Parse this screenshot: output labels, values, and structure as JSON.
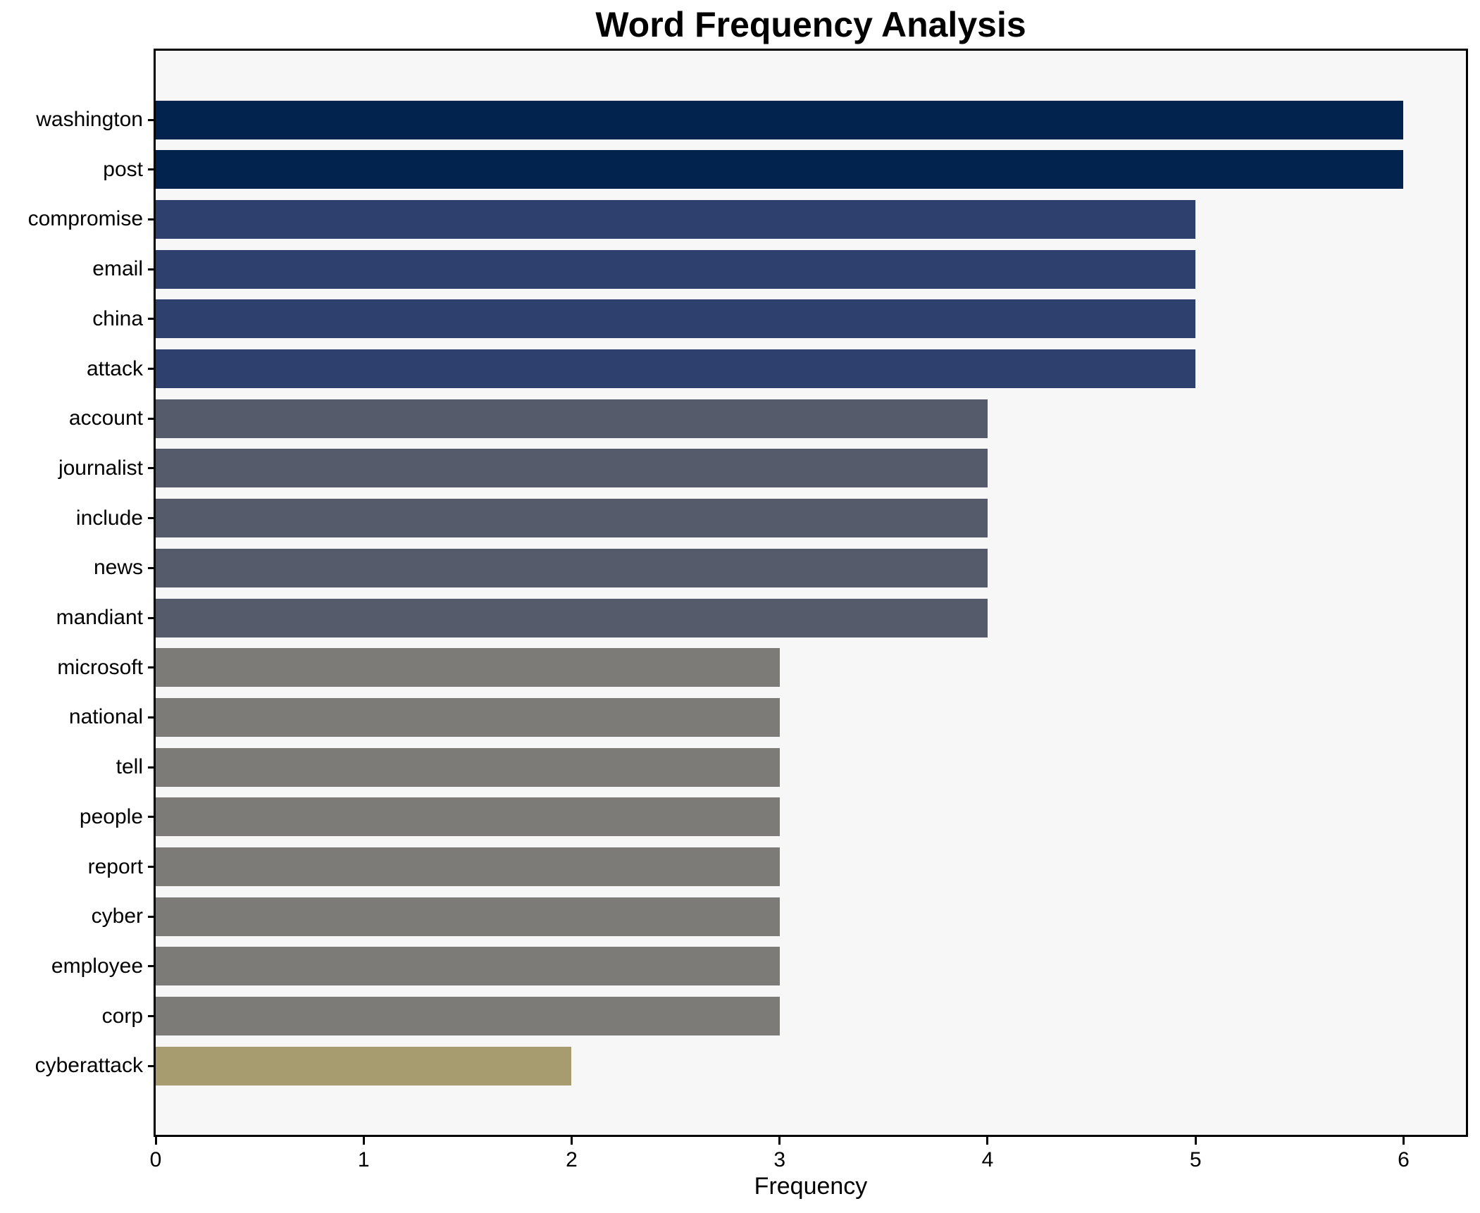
{
  "chart_data": {
    "type": "bar",
    "orientation": "horizontal",
    "title": "Word Frequency Analysis",
    "xlabel": "Frequency",
    "ylabel": "",
    "categories": [
      "washington",
      "post",
      "compromise",
      "email",
      "china",
      "attack",
      "account",
      "journalist",
      "include",
      "news",
      "mandiant",
      "microsoft",
      "national",
      "tell",
      "people",
      "report",
      "cyber",
      "employee",
      "corp",
      "cyberattack"
    ],
    "values": [
      6,
      6,
      5,
      5,
      5,
      5,
      4,
      4,
      4,
      4,
      4,
      3,
      3,
      3,
      3,
      3,
      3,
      3,
      3,
      2
    ],
    "x_ticks": [
      0,
      1,
      2,
      3,
      4,
      5,
      6
    ],
    "xlim": [
      0,
      6.3
    ],
    "grid": false,
    "legend": null,
    "colors": {
      "value_6": "#02234e",
      "value_5": "#2d406e",
      "value_4": "#565b6b",
      "value_3": "#7c7b77",
      "value_2": "#a69c70",
      "plot_background": "#f7f7f7",
      "figure_background": "#ffffff",
      "spine": "#000000",
      "text": "#000000"
    }
  }
}
